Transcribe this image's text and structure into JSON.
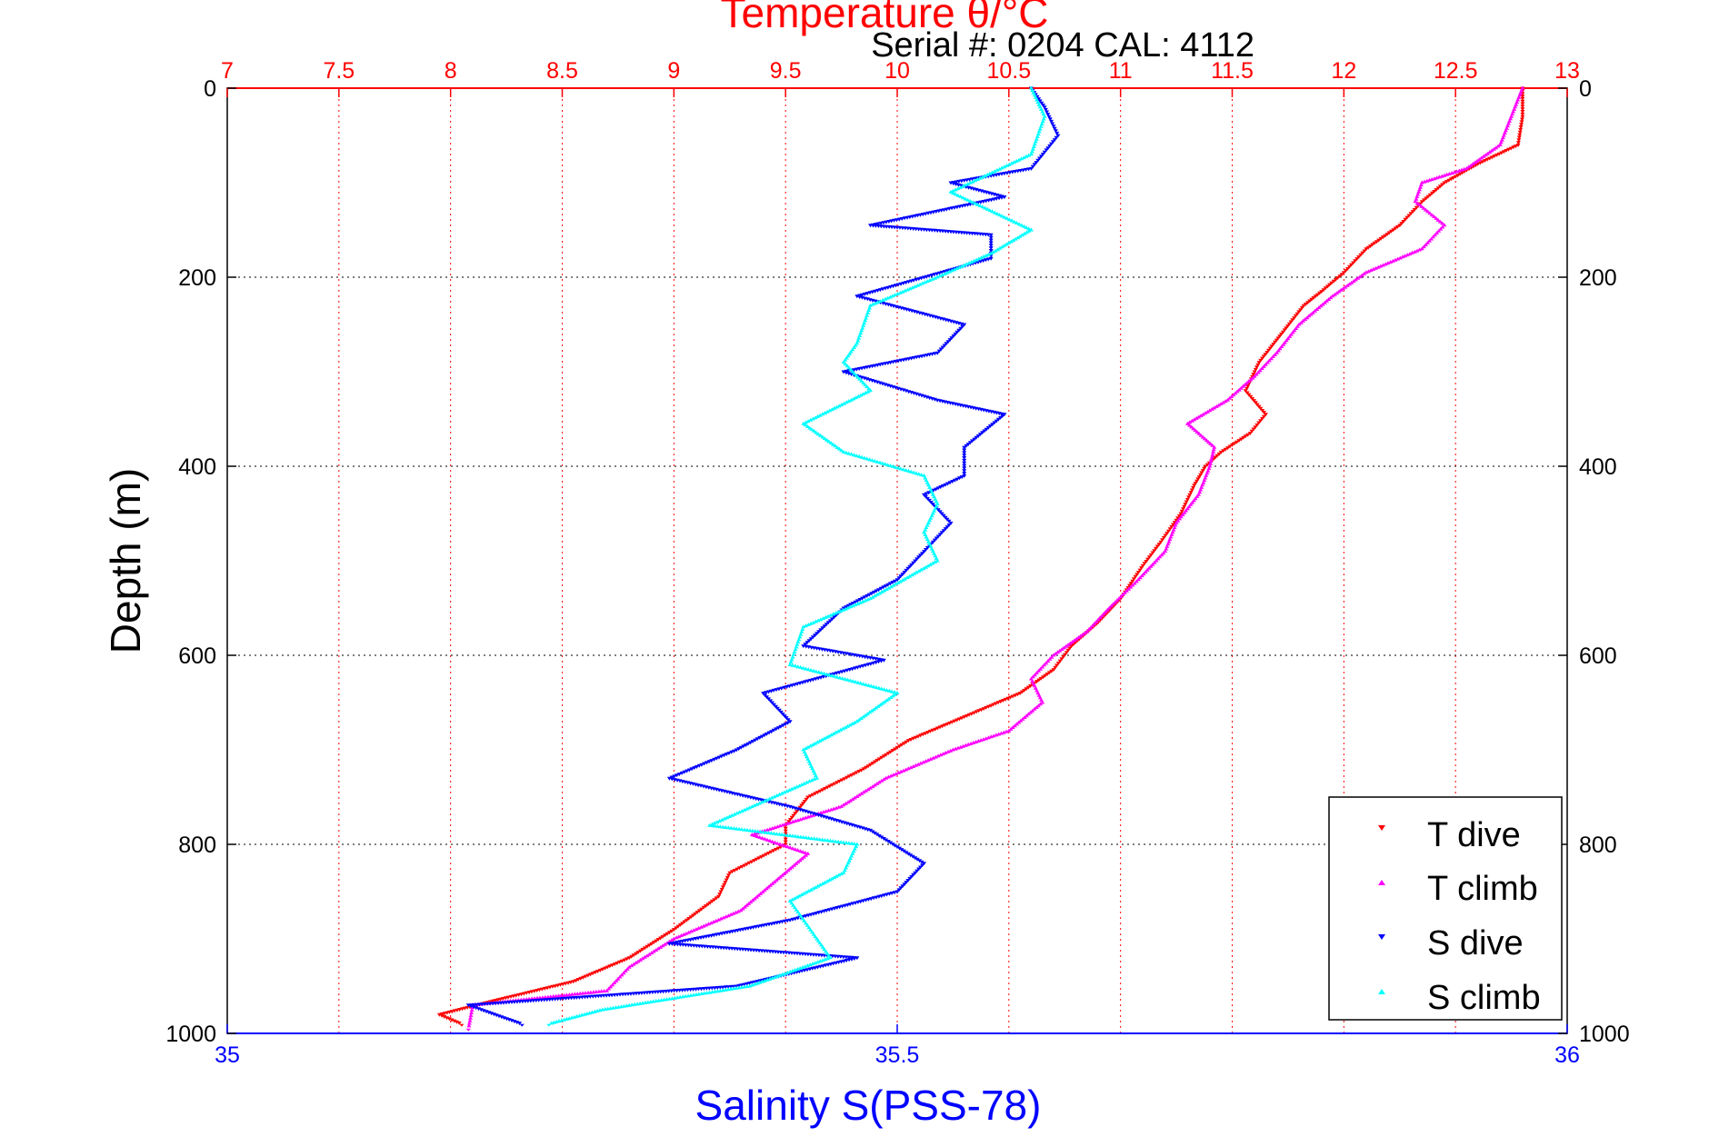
{
  "chart_data": {
    "type": "scatter",
    "title": "Temperature θ/°C",
    "subtitle": "Serial #: 0204  CAL: 4112",
    "ylabel": "Depth (m)",
    "xlabel_top": "Temperature θ/°C",
    "xlabel_bottom": "Salinity S(PSS-78)",
    "y_axis": {
      "range": [
        0,
        1000
      ],
      "reversed": true,
      "ticks": [
        "0",
        "200",
        "400",
        "600",
        "800",
        "1000"
      ]
    },
    "x_axis_top": {
      "quantity": "temperature",
      "range": [
        7,
        13
      ],
      "ticks": [
        "7",
        "7.5",
        "8",
        "8.5",
        "9",
        "9.5",
        "10",
        "10.5",
        "11",
        "11.5",
        "12",
        "12.5",
        "13"
      ]
    },
    "x_axis_bottom": {
      "quantity": "salinity",
      "range": [
        35,
        36
      ],
      "ticks": [
        "35",
        "35.5",
        "36"
      ]
    },
    "grid": true,
    "legend_position": "bottom-right",
    "series": [
      {
        "name": "T dive",
        "axis": "temperature",
        "color": "#ff0000",
        "marker": "triangle-down",
        "points": [
          [
            12.8,
            0
          ],
          [
            12.8,
            30
          ],
          [
            12.78,
            60
          ],
          [
            12.6,
            80
          ],
          [
            12.45,
            100
          ],
          [
            12.35,
            120
          ],
          [
            12.25,
            145
          ],
          [
            12.1,
            170
          ],
          [
            12.0,
            195
          ],
          [
            11.9,
            215
          ],
          [
            11.82,
            230
          ],
          [
            11.72,
            260
          ],
          [
            11.62,
            290
          ],
          [
            11.56,
            320
          ],
          [
            11.65,
            345
          ],
          [
            11.58,
            365
          ],
          [
            11.45,
            385
          ],
          [
            11.38,
            400
          ],
          [
            11.33,
            420
          ],
          [
            11.27,
            450
          ],
          [
            11.18,
            480
          ],
          [
            11.1,
            505
          ],
          [
            11.0,
            540
          ],
          [
            10.9,
            565
          ],
          [
            10.78,
            590
          ],
          [
            10.7,
            615
          ],
          [
            10.55,
            640
          ],
          [
            10.3,
            665
          ],
          [
            10.05,
            690
          ],
          [
            9.85,
            720
          ],
          [
            9.6,
            750
          ],
          [
            9.5,
            780
          ],
          [
            9.5,
            800
          ],
          [
            9.25,
            830
          ],
          [
            9.2,
            855
          ],
          [
            9.0,
            890
          ],
          [
            8.8,
            920
          ],
          [
            8.55,
            945
          ],
          [
            8.2,
            965
          ],
          [
            7.95,
            980
          ],
          [
            8.05,
            990
          ]
        ]
      },
      {
        "name": "T climb",
        "axis": "temperature",
        "color": "#ff00ff",
        "marker": "triangle-up",
        "points": [
          [
            12.8,
            0
          ],
          [
            12.75,
            30
          ],
          [
            12.7,
            60
          ],
          [
            12.55,
            85
          ],
          [
            12.35,
            100
          ],
          [
            12.32,
            120
          ],
          [
            12.45,
            145
          ],
          [
            12.35,
            170
          ],
          [
            12.1,
            195
          ],
          [
            11.95,
            220
          ],
          [
            11.8,
            250
          ],
          [
            11.7,
            280
          ],
          [
            11.6,
            305
          ],
          [
            11.48,
            330
          ],
          [
            11.3,
            355
          ],
          [
            11.42,
            380
          ],
          [
            11.4,
            400
          ],
          [
            11.35,
            430
          ],
          [
            11.25,
            460
          ],
          [
            11.2,
            490
          ],
          [
            11.08,
            520
          ],
          [
            10.95,
            550
          ],
          [
            10.85,
            575
          ],
          [
            10.7,
            600
          ],
          [
            10.6,
            625
          ],
          [
            10.65,
            650
          ],
          [
            10.5,
            680
          ],
          [
            10.25,
            700
          ],
          [
            9.95,
            730
          ],
          [
            9.75,
            760
          ],
          [
            9.35,
            790
          ],
          [
            9.6,
            810
          ],
          [
            9.45,
            840
          ],
          [
            9.3,
            870
          ],
          [
            9.0,
            900
          ],
          [
            8.8,
            930
          ],
          [
            8.7,
            955
          ],
          [
            8.1,
            970
          ],
          [
            8.08,
            995
          ]
        ]
      },
      {
        "name": "S dive",
        "axis": "salinity",
        "color": "#0000ff",
        "marker": "triangle-down",
        "points": [
          [
            35.6,
            0
          ],
          [
            35.61,
            20
          ],
          [
            35.62,
            50
          ],
          [
            35.6,
            85
          ],
          [
            35.54,
            100
          ],
          [
            35.58,
            115
          ],
          [
            35.48,
            145
          ],
          [
            35.57,
            155
          ],
          [
            35.57,
            180
          ],
          [
            35.52,
            200
          ],
          [
            35.47,
            220
          ],
          [
            35.55,
            250
          ],
          [
            35.53,
            280
          ],
          [
            35.46,
            300
          ],
          [
            35.53,
            330
          ],
          [
            35.58,
            345
          ],
          [
            35.55,
            380
          ],
          [
            35.55,
            410
          ],
          [
            35.52,
            430
          ],
          [
            35.54,
            460
          ],
          [
            35.52,
            490
          ],
          [
            35.5,
            520
          ],
          [
            35.46,
            550
          ],
          [
            35.43,
            590
          ],
          [
            35.49,
            605
          ],
          [
            35.4,
            640
          ],
          [
            35.42,
            670
          ],
          [
            35.38,
            700
          ],
          [
            35.33,
            730
          ],
          [
            35.42,
            760
          ],
          [
            35.48,
            785
          ],
          [
            35.52,
            820
          ],
          [
            35.5,
            850
          ],
          [
            35.42,
            880
          ],
          [
            35.33,
            905
          ],
          [
            35.47,
            920
          ],
          [
            35.38,
            950
          ],
          [
            35.18,
            970
          ],
          [
            35.22,
            990
          ]
        ]
      },
      {
        "name": "S climb",
        "axis": "salinity",
        "color": "#00ffff",
        "marker": "triangle-up",
        "points": [
          [
            35.6,
            0
          ],
          [
            35.61,
            30
          ],
          [
            35.6,
            70
          ],
          [
            35.54,
            110
          ],
          [
            35.6,
            150
          ],
          [
            35.57,
            175
          ],
          [
            35.53,
            200
          ],
          [
            35.48,
            230
          ],
          [
            35.47,
            270
          ],
          [
            35.46,
            290
          ],
          [
            35.48,
            320
          ],
          [
            35.43,
            355
          ],
          [
            35.46,
            385
          ],
          [
            35.52,
            410
          ],
          [
            35.53,
            440
          ],
          [
            35.52,
            470
          ],
          [
            35.53,
            500
          ],
          [
            35.48,
            540
          ],
          [
            35.43,
            570
          ],
          [
            35.42,
            610
          ],
          [
            35.5,
            640
          ],
          [
            35.47,
            670
          ],
          [
            35.43,
            700
          ],
          [
            35.44,
            730
          ],
          [
            35.36,
            780
          ],
          [
            35.47,
            800
          ],
          [
            35.46,
            830
          ],
          [
            35.42,
            860
          ],
          [
            35.44,
            900
          ],
          [
            35.45,
            920
          ],
          [
            35.39,
            950
          ],
          [
            35.28,
            975
          ],
          [
            35.24,
            990
          ]
        ]
      }
    ]
  }
}
